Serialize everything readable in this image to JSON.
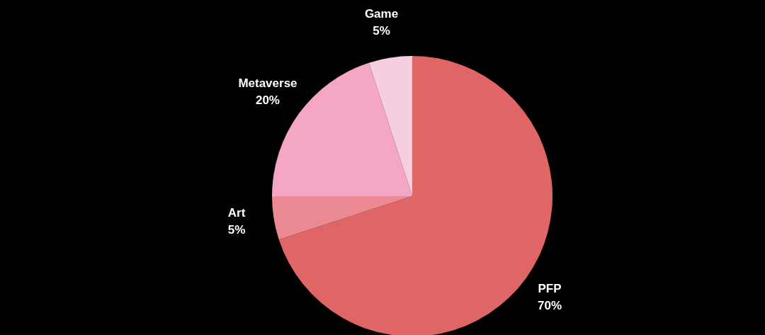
{
  "chart_data": {
    "type": "pie",
    "categories": [
      "PFP",
      "Art",
      "Metaverse",
      "Game"
    ],
    "values": [
      70,
      5,
      20,
      5
    ],
    "colors": [
      "#e06666",
      "#ec8a93",
      "#f4a6c4",
      "#f7cde0"
    ],
    "value_labels": [
      "70%",
      "5%",
      "20%",
      "5%"
    ],
    "legend": false
  }
}
